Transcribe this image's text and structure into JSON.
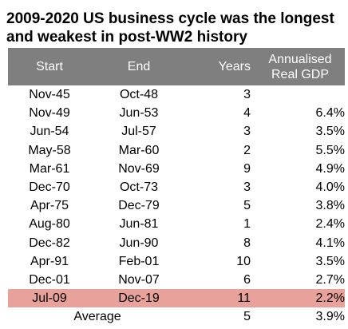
{
  "title_line1": "2009-2020 US business cycle was the longest",
  "title_line2": "and weakest in post-WW2 history",
  "headers": {
    "start": "Start",
    "end": "End",
    "years": "Years",
    "gdp_line1": "Annualised",
    "gdp_line2": "Real GDP"
  },
  "rows": [
    {
      "start": "Nov-45",
      "end": "Oct-48",
      "years": "3",
      "gdp": ""
    },
    {
      "start": "Nov-49",
      "end": "Jun-53",
      "years": "4",
      "gdp": "6.4%"
    },
    {
      "start": "Jun-54",
      "end": "Jul-57",
      "years": "3",
      "gdp": "3.5%"
    },
    {
      "start": "May-58",
      "end": "Mar-60",
      "years": "2",
      "gdp": "5.5%"
    },
    {
      "start": "Mar-61",
      "end": "Nov-69",
      "years": "9",
      "gdp": "4.9%"
    },
    {
      "start": "Dec-70",
      "end": "Oct-73",
      "years": "3",
      "gdp": "4.0%"
    },
    {
      "start": "Apr-75",
      "end": "Dec-79",
      "years": "5",
      "gdp": "3.8%"
    },
    {
      "start": "Aug-80",
      "end": "Jun-81",
      "years": "1",
      "gdp": "2.4%"
    },
    {
      "start": "Dec-82",
      "end": "Jun-90",
      "years": "8",
      "gdp": "4.1%"
    },
    {
      "start": "Apr-91",
      "end": "Feb-01",
      "years": "10",
      "gdp": "3.5%"
    },
    {
      "start": "Dec-01",
      "end": "Nov-07",
      "years": "6",
      "gdp": "2.7%"
    },
    {
      "start": "Jul-09",
      "end": "Dec-19",
      "years": "11",
      "gdp": "2.2%"
    }
  ],
  "average": {
    "label": "Average",
    "years": "5",
    "gdp": "3.9%"
  },
  "colors": {
    "header_bg": "#7f7f7f",
    "header_text": "#ffffff",
    "highlight_row": "#e8a19b"
  }
}
